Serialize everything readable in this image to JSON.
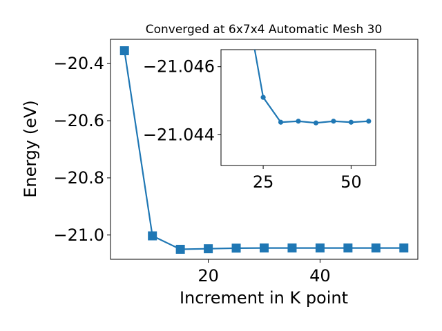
{
  "colors": {
    "line": "#1f77b4",
    "axis": "#000000",
    "background": "#ffffff"
  },
  "chart_data": [
    {
      "type": "line",
      "role": "main",
      "title": "Converged at 6x7x4 Automatic Mesh 30",
      "xlabel": "Increment in K point",
      "ylabel": "Energy (eV)",
      "xlim": [
        2.5,
        57.5
      ],
      "ylim": [
        -21.085,
        -20.315
      ],
      "xticks": [
        20,
        40
      ],
      "xtick_labels": [
        "20",
        "40"
      ],
      "yticks": [
        -20.4,
        -20.6,
        -20.8,
        -21.0
      ],
      "ytick_labels": [
        "−20.4",
        "−20.6",
        "−20.8",
        "−21.0"
      ],
      "marker": "square",
      "series": [
        {
          "x": [
            5,
            10,
            15,
            20,
            25,
            30,
            35,
            40,
            45,
            50,
            55
          ],
          "y": [
            -20.355,
            -21.003,
            -21.05,
            -21.048,
            -21.046,
            -21.0455,
            -21.0455,
            -21.0455,
            -21.0455,
            -21.0455,
            -21.0455
          ]
        }
      ]
    },
    {
      "type": "line",
      "role": "inset",
      "xlim": [
        13,
        57
      ],
      "ylim": [
        -21.0431,
        -21.0465
      ],
      "xticks": [
        25,
        50
      ],
      "xtick_labels": [
        "25",
        "50"
      ],
      "yticks": [
        -21.046,
        -21.044
      ],
      "ytick_labels": [
        "−21.046",
        "−21.044"
      ],
      "marker": "circle",
      "series": [
        {
          "x": [
            20,
            25,
            30,
            35,
            40,
            45,
            50,
            55
          ],
          "y": [
            -21.048,
            -21.0451,
            -21.04437,
            -21.0444,
            -21.04435,
            -21.0444,
            -21.04437,
            -21.0444
          ]
        }
      ]
    }
  ]
}
